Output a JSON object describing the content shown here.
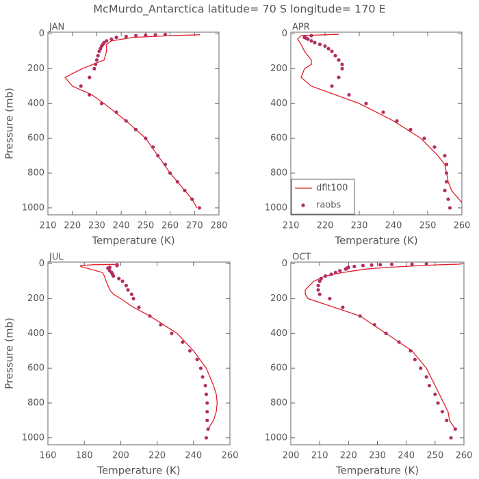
{
  "title": "McMurdo_Antarctica  latitude= 70 S longitude= 170 E",
  "chart_data": [
    {
      "type": "line",
      "title": "JAN",
      "xlabel": "Temperature (K)",
      "ylabel": "Pressure (mb)",
      "xlim": [
        210,
        280
      ],
      "xticks": [
        210,
        220,
        230,
        240,
        250,
        260,
        270,
        280
      ],
      "ylim": [
        1040,
        -10
      ],
      "yticks": [
        0,
        200,
        400,
        600,
        800,
        1000
      ],
      "series": [
        {
          "kind": "line",
          "color": "#e0202a",
          "x": [
            271,
            269,
            266,
            263,
            260,
            255,
            250,
            242,
            233,
            228,
            220,
            217,
            224,
            233,
            234,
            234,
            236,
            245,
            260,
            272,
            272
          ],
          "values": [
            1000,
            950,
            900,
            850,
            800,
            700,
            600,
            500,
            400,
            350,
            300,
            250,
            200,
            150,
            100,
            60,
            40,
            20,
            10,
            5,
            2
          ]
        },
        {
          "kind": "scatter",
          "color": "#b03060",
          "x": [
            272,
            269,
            266,
            263,
            260,
            258,
            255,
            253,
            250,
            246,
            242,
            238,
            232,
            227,
            223.5,
            227,
            229,
            229.5,
            230,
            230.5,
            231,
            231.5,
            232,
            232.5,
            233,
            234,
            236,
            238,
            242,
            246,
            250,
            254,
            258
          ],
          "values": [
            1000,
            950,
            900,
            850,
            800,
            750,
            700,
            650,
            600,
            550,
            500,
            450,
            400,
            350,
            300,
            250,
            200,
            175,
            150,
            125,
            100,
            85,
            70,
            60,
            50,
            40,
            30,
            20,
            15,
            10,
            7,
            5,
            3
          ]
        }
      ]
    },
    {
      "type": "line",
      "title": "APR",
      "xlabel": "Temperature (K)",
      "xlim": [
        210,
        260
      ],
      "xticks": [
        210,
        220,
        230,
        240,
        250,
        260
      ],
      "ylim": [
        1040,
        -10
      ],
      "yticks": [
        0,
        200,
        400,
        600,
        800,
        1000
      ],
      "legend": "lower left",
      "series": [
        {
          "kind": "line",
          "name": "dflt100",
          "color": "#e0202a",
          "x": [
            260,
            257,
            256,
            255.5,
            255,
            253,
            248,
            240,
            230,
            223,
            216,
            213,
            214,
            216,
            216,
            214,
            213,
            212,
            213,
            220,
            224
          ],
          "values": [
            970,
            900,
            850,
            800,
            750,
            700,
            600,
            500,
            400,
            350,
            300,
            250,
            200,
            175,
            150,
            100,
            60,
            30,
            10,
            5,
            2
          ]
        },
        {
          "kind": "scatter",
          "name": "raobs",
          "color": "#b03060",
          "x": [
            256.5,
            256,
            255,
            255.5,
            255.5,
            255.5,
            255,
            252,
            249,
            245,
            241,
            237,
            232,
            227,
            222,
            224,
            225,
            225,
            224,
            223,
            222,
            221,
            220,
            218.5,
            217,
            216,
            215,
            214.5,
            214,
            214,
            216
          ],
          "values": [
            1000,
            950,
            900,
            850,
            800,
            750,
            700,
            650,
            600,
            550,
            500,
            450,
            400,
            350,
            300,
            250,
            200,
            175,
            150,
            125,
            100,
            85,
            70,
            60,
            50,
            40,
            30,
            25,
            20,
            15,
            10
          ]
        }
      ]
    },
    {
      "type": "line",
      "title": "JUL",
      "xlabel": "Temperature (K)",
      "ylabel": "Pressure (mb)",
      "xlim": [
        160,
        260
      ],
      "xticks": [
        160,
        180,
        200,
        220,
        240,
        260
      ],
      "ylim": [
        1040,
        -10
      ],
      "yticks": [
        0,
        200,
        400,
        600,
        800,
        1000
      ],
      "series": [
        {
          "kind": "line",
          "color": "#e0202a",
          "x": [
            248,
            251,
            252.5,
            253,
            252.5,
            251,
            247,
            240,
            231,
            216,
            207,
            200,
            196,
            194,
            192,
            191,
            190,
            183,
            178,
            178,
            185,
            197
          ],
          "values": [
            950,
            900,
            850,
            800,
            750,
            700,
            600,
            500,
            400,
            300,
            250,
            200,
            175,
            150,
            100,
            70,
            50,
            30,
            15,
            10,
            5,
            3
          ]
        },
        {
          "kind": "scatter",
          "color": "#b03060",
          "x": [
            247,
            248,
            247.5,
            247.5,
            247.5,
            247,
            246.5,
            245,
            244,
            242,
            238,
            234,
            228,
            222,
            216,
            210,
            207,
            206,
            204,
            203,
            201,
            199,
            196,
            195.5,
            195,
            194,
            193.5,
            193,
            194,
            198,
            198
          ],
          "values": [
            1000,
            950,
            900,
            850,
            800,
            750,
            700,
            650,
            600,
            550,
            500,
            450,
            400,
            350,
            300,
            250,
            200,
            175,
            150,
            125,
            100,
            85,
            70,
            60,
            50,
            40,
            30,
            25,
            20,
            10,
            5
          ]
        }
      ]
    },
    {
      "type": "line",
      "title": "OCT",
      "xlabel": "Temperature (K)",
      "xlim": [
        200,
        260
      ],
      "xticks": [
        200,
        210,
        220,
        230,
        240,
        250,
        260
      ],
      "ylim": [
        1040,
        -10
      ],
      "yticks": [
        0,
        200,
        400,
        600,
        800,
        1000
      ],
      "series": [
        {
          "kind": "line",
          "color": "#e0202a",
          "x": [
            257,
            255,
            254.5,
            253,
            250,
            247,
            242,
            233,
            224,
            215,
            206,
            205,
            205,
            208,
            212,
            218,
            226,
            234,
            245,
            252,
            258,
            259
          ],
          "values": [
            950,
            900,
            850,
            800,
            700,
            600,
            500,
            400,
            300,
            250,
            200,
            175,
            150,
            100,
            70,
            50,
            30,
            20,
            10,
            5,
            2,
            1
          ]
        },
        {
          "kind": "scatter",
          "color": "#b03060",
          "x": [
            255.5,
            257,
            254,
            252.5,
            251,
            250,
            248,
            247,
            245,
            243,
            241.5,
            237.5,
            233,
            229,
            224,
            218,
            213.5,
            210,
            209.5,
            209.5,
            210,
            210.5,
            212,
            214,
            215.5,
            217,
            219,
            219.5,
            220,
            222,
            225,
            228,
            231,
            235,
            242,
            247
          ],
          "values": [
            1000,
            950,
            900,
            850,
            800,
            750,
            700,
            650,
            600,
            550,
            500,
            450,
            400,
            350,
            300,
            250,
            200,
            175,
            150,
            125,
            100,
            85,
            70,
            60,
            50,
            40,
            30,
            25,
            20,
            15,
            10,
            7,
            5,
            3,
            2,
            1
          ]
        }
      ]
    }
  ]
}
